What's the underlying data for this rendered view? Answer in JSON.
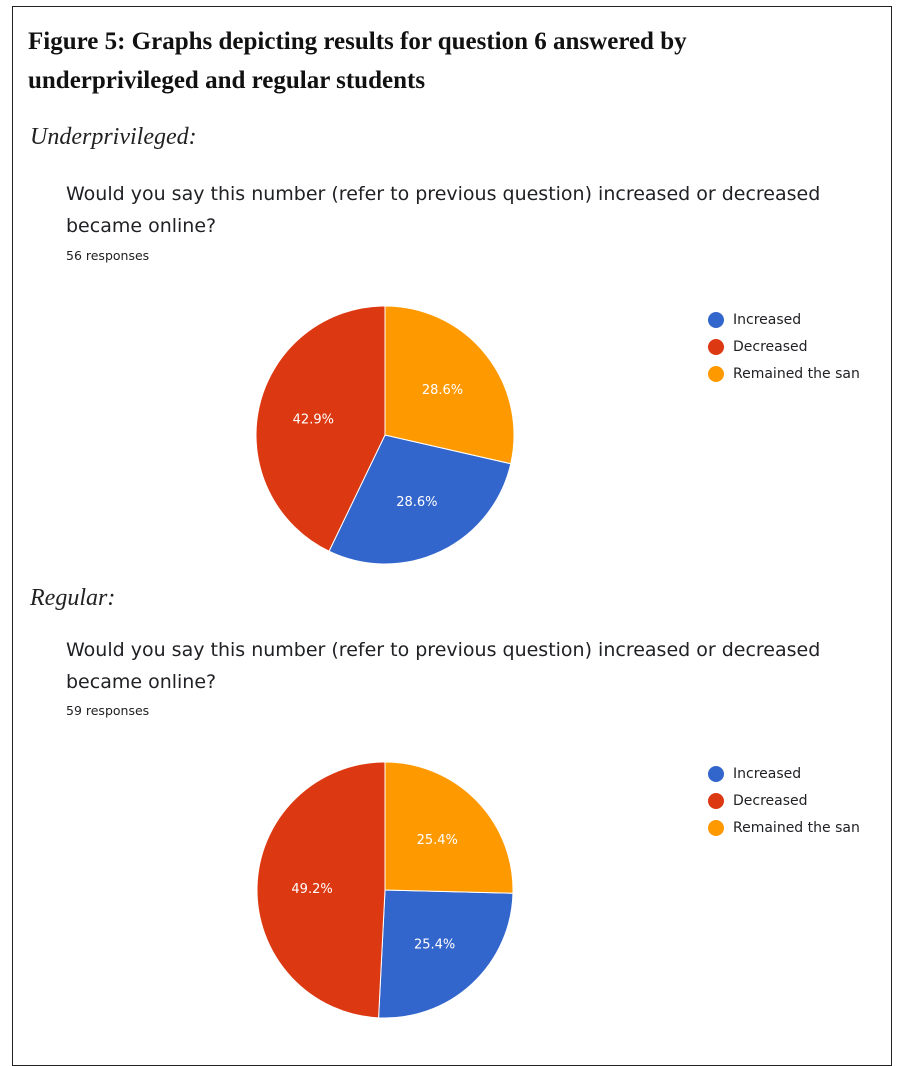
{
  "figure_title": "Figure 5: Graphs depicting results for question 6 answered by underprivileged and regular students",
  "colors": {
    "increased": "#3366cc",
    "decreased": "#dc3912",
    "remained": "#ff9900"
  },
  "chart_data": [
    {
      "type": "pie",
      "section_label": "Underprivileged:",
      "title_line1": "Would you say this number (refer to previous question) increased or decreased",
      "title_line2": "became online?",
      "responses": "56 responses",
      "legend": [
        "Increased",
        "Decreased",
        "Remained the san"
      ],
      "categories": [
        "Increased",
        "Decreased",
        "Remained the same"
      ],
      "values": [
        28.6,
        42.9,
        28.6
      ],
      "labels": [
        "28.6%",
        "42.9%",
        "28.6%"
      ],
      "legend_position": "right"
    },
    {
      "type": "pie",
      "section_label": "Regular:",
      "title_line1": "Would you say this number (refer to previous question) increased or decreased",
      "title_line2": "became online?",
      "responses": "59 responses",
      "legend": [
        "Increased",
        "Decreased",
        "Remained the san"
      ],
      "categories": [
        "Increased",
        "Decreased",
        "Remained the same"
      ],
      "values": [
        25.4,
        49.2,
        25.4
      ],
      "labels": [
        "25.4%",
        "49.2%",
        "25.4%"
      ],
      "legend_position": "right"
    }
  ]
}
